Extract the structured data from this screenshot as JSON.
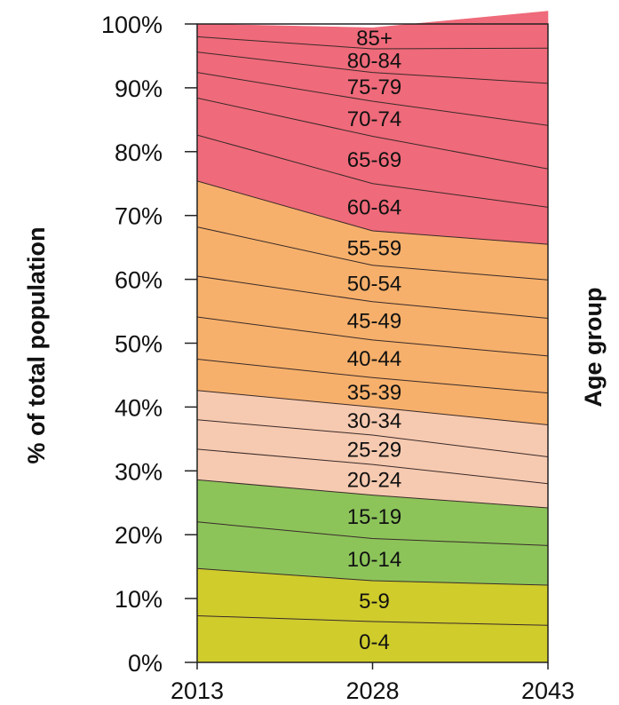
{
  "chart_data": {
    "type": "area",
    "stacked": true,
    "normalized": true,
    "x": [
      "2013",
      "2028",
      "2043"
    ],
    "ylabel": "% of total population",
    "legend_title": "Age group",
    "ylim": [
      0,
      100
    ],
    "yticks": [
      "0%",
      "10%",
      "20%",
      "30%",
      "40%",
      "50%",
      "60%",
      "70%",
      "80%",
      "90%",
      "100%"
    ],
    "series": [
      {
        "name": "0-4",
        "values": [
          7.3,
          6.4,
          5.8
        ],
        "color": "#cfcc2c"
      },
      {
        "name": "5-9",
        "values": [
          7.4,
          6.4,
          6.3
        ],
        "color": "#cfcc2c"
      },
      {
        "name": "10-14",
        "values": [
          7.3,
          6.6,
          6.2
        ],
        "color": "#8cc45a"
      },
      {
        "name": "15-19",
        "values": [
          6.6,
          6.8,
          5.9
        ],
        "color": "#8cc45a"
      },
      {
        "name": "20-24",
        "values": [
          4.8,
          4.8,
          3.8
        ],
        "color": "#f6cab0"
      },
      {
        "name": "25-29",
        "values": [
          4.6,
          4.6,
          4.2
        ],
        "color": "#f6cab0"
      },
      {
        "name": "30-34",
        "values": [
          4.6,
          4.4,
          5.0
        ],
        "color": "#f6cab0"
      },
      {
        "name": "35-39",
        "values": [
          4.9,
          4.6,
          5.0
        ],
        "color": "#f6b06b"
      },
      {
        "name": "40-44",
        "values": [
          6.6,
          5.9,
          5.8
        ],
        "color": "#f6b06b"
      },
      {
        "name": "45-49",
        "values": [
          6.4,
          6.0,
          5.9
        ],
        "color": "#f6b06b"
      },
      {
        "name": "50-54",
        "values": [
          7.7,
          5.7,
          6.0
        ],
        "color": "#f6b06b"
      },
      {
        "name": "55-59",
        "values": [
          7.2,
          5.4,
          5.6
        ],
        "color": "#f6b06b"
      },
      {
        "name": "60-64",
        "values": [
          7.2,
          7.4,
          5.8
        ],
        "color": "#ef6a7a"
      },
      {
        "name": "65-69",
        "values": [
          5.8,
          7.4,
          6.0
        ],
        "color": "#ef6a7a"
      },
      {
        "name": "70-74",
        "values": [
          4.0,
          5.5,
          6.8
        ],
        "color": "#ef6a7a"
      },
      {
        "name": "75-79",
        "values": [
          3.2,
          4.5,
          6.6
        ],
        "color": "#ef6a7a"
      },
      {
        "name": "80-84",
        "values": [
          2.4,
          3.7,
          5.5
        ],
        "color": "#ef6a7a"
      },
      {
        "name": "85+",
        "values": [
          2.0,
          3.3,
          5.8
        ],
        "color": "#ef6a7a"
      }
    ]
  }
}
